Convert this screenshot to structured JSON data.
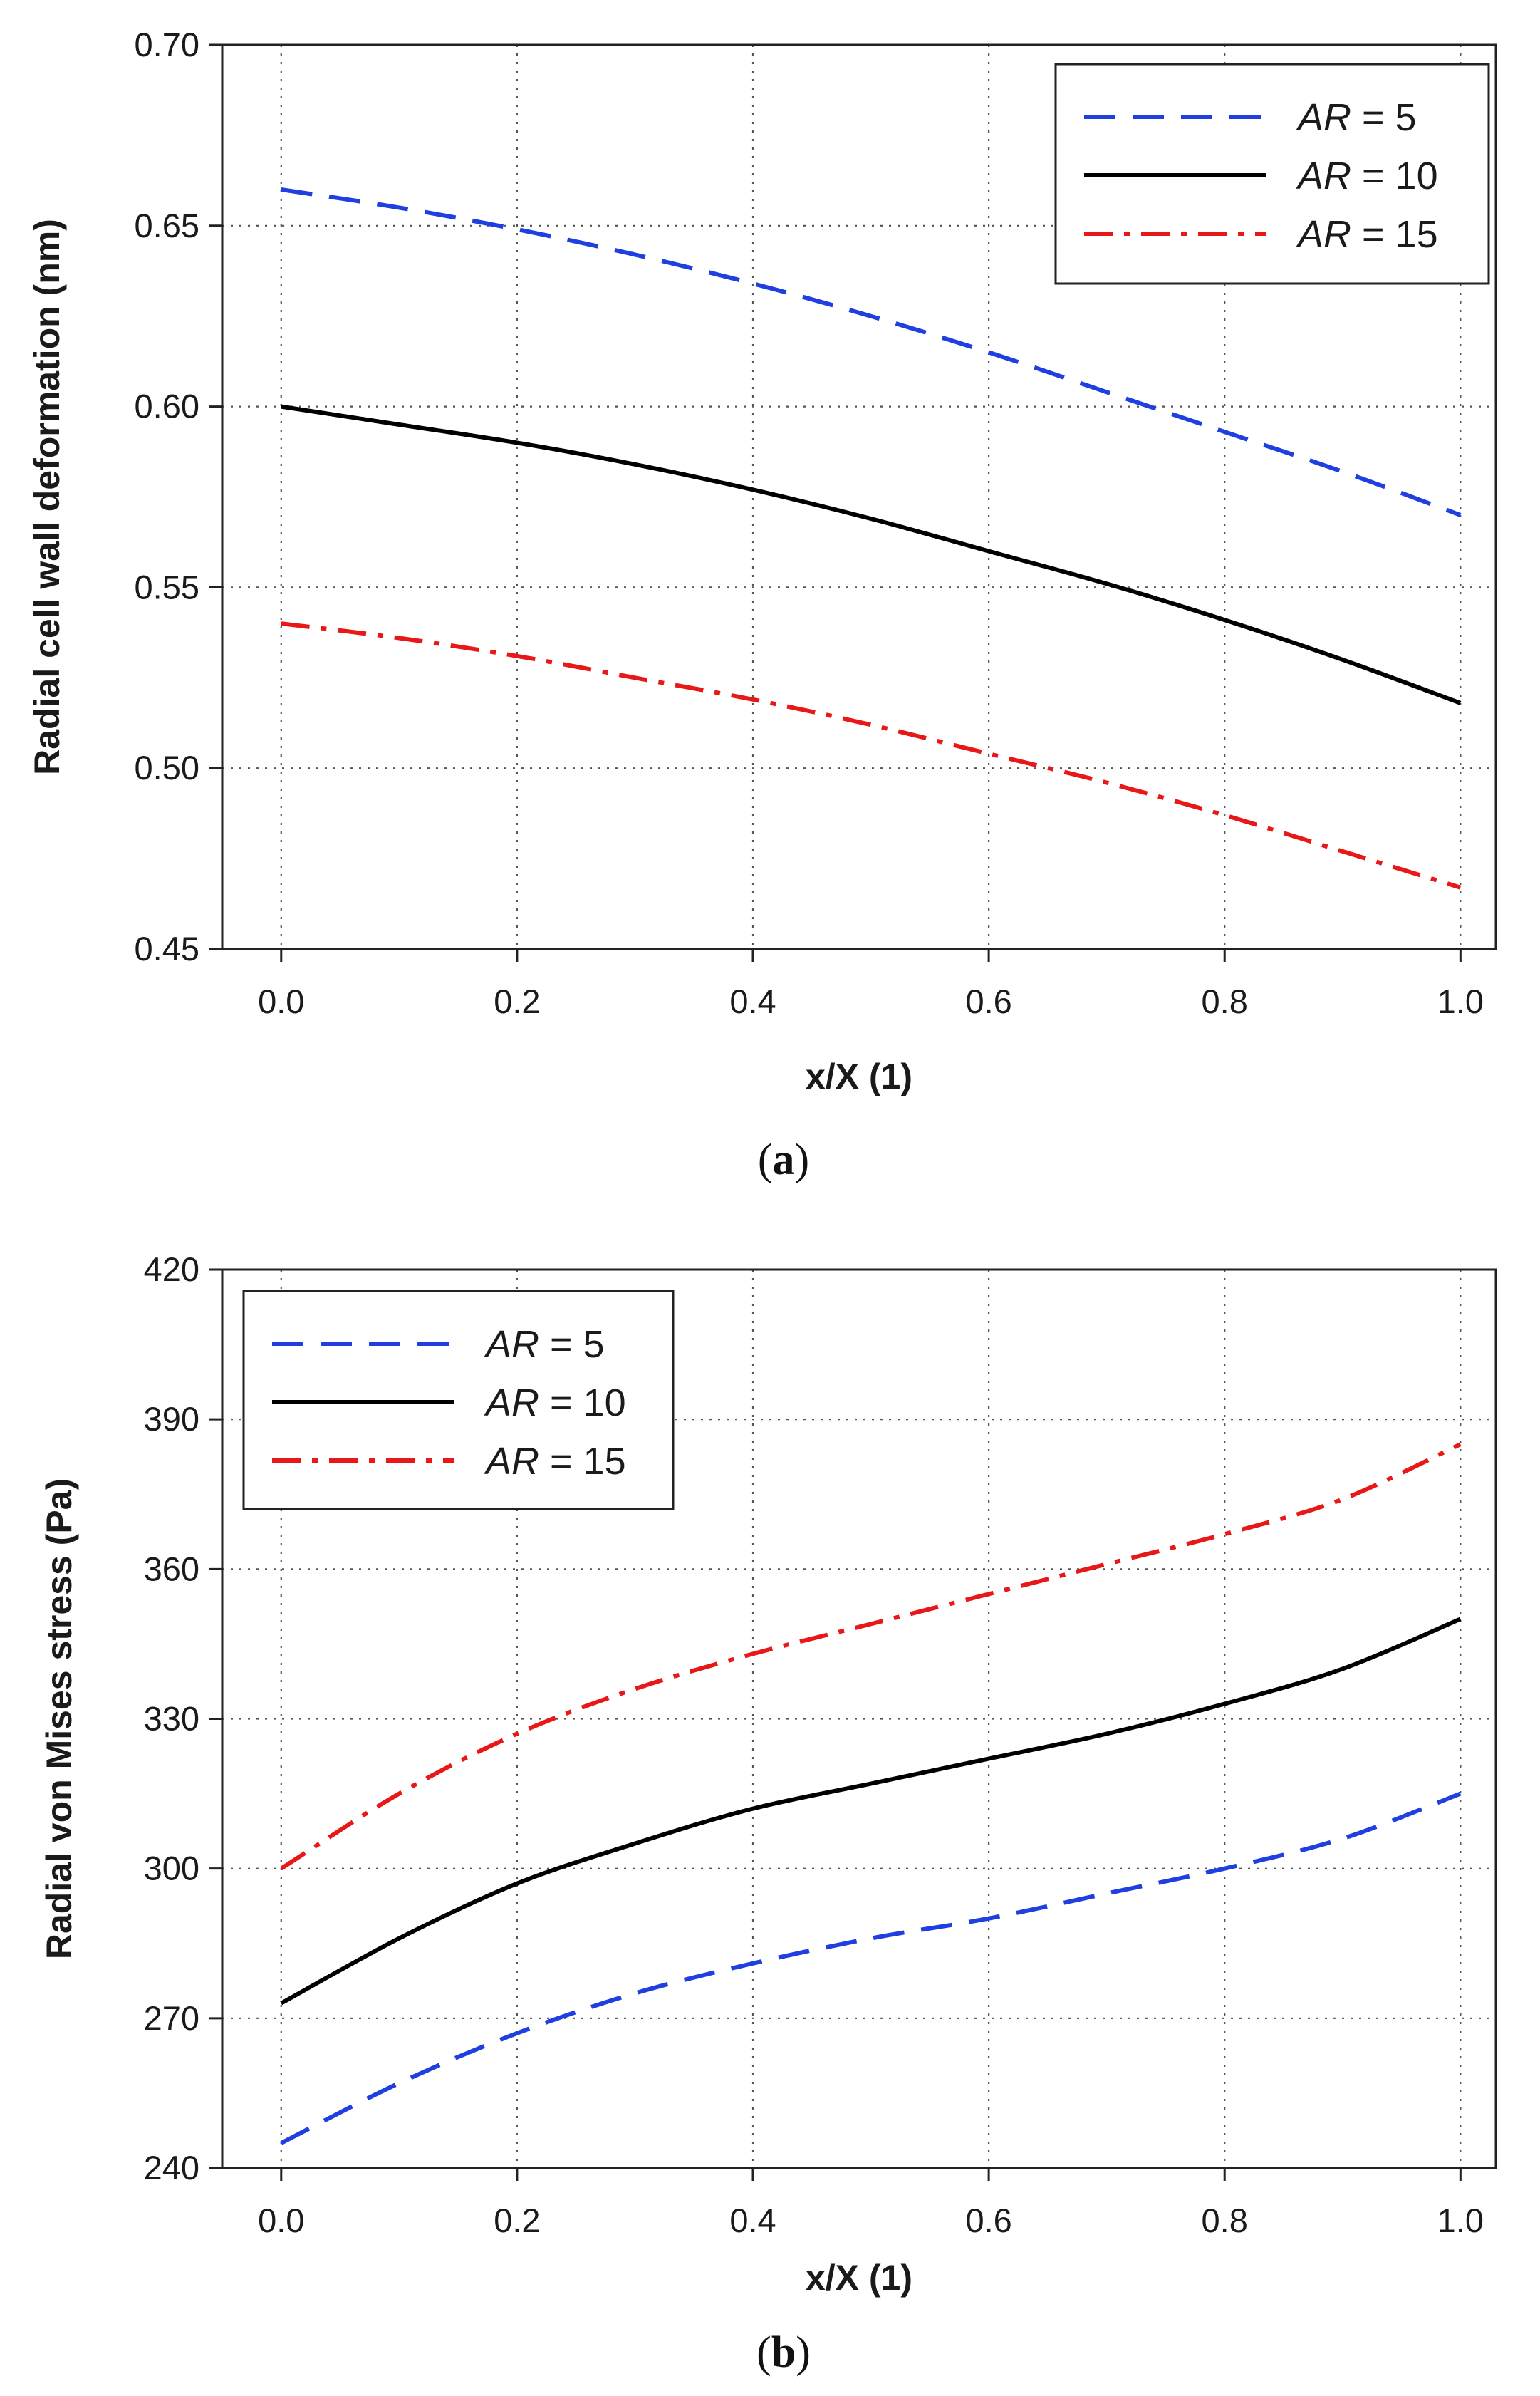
{
  "chart_data": [
    {
      "type": "line",
      "panel": "a",
      "caption_letter": "a",
      "xlabel": "x/X (1)",
      "ylabel": "Radial cell wall deformation (nm)",
      "xlim": [
        -0.05,
        1.03
      ],
      "ylim": [
        0.45,
        0.7
      ],
      "xticks": [
        "0.0",
        "0.2",
        "0.4",
        "0.6",
        "0.8",
        "1.0"
      ],
      "yticks": [
        "0.45",
        "0.50",
        "0.55",
        "0.60",
        "0.65",
        "0.70"
      ],
      "grid": true,
      "legend_position": "top-right",
      "x": [
        0.0,
        0.1,
        0.2,
        0.3,
        0.4,
        0.5,
        0.6,
        0.7,
        0.8,
        0.9,
        1.0
      ],
      "series": [
        {
          "name": "AR = 5",
          "prefix": "AR",
          "suffix": " = 5",
          "color": "#1f3fe0",
          "dash": "dashed",
          "values": [
            0.66,
            0.655,
            0.649,
            0.642,
            0.634,
            0.625,
            0.615,
            0.604,
            0.593,
            0.582,
            0.57
          ]
        },
        {
          "name": "AR = 10",
          "prefix": "AR",
          "suffix": " = 10",
          "color": "#000000",
          "dash": "solid",
          "values": [
            0.6,
            0.595,
            0.59,
            0.584,
            0.577,
            0.569,
            0.56,
            0.551,
            0.541,
            0.53,
            0.518
          ]
        },
        {
          "name": "AR = 15",
          "prefix": "AR",
          "suffix": " = 15",
          "color": "#e81818",
          "dash": "dashdot",
          "values": [
            0.54,
            0.536,
            0.531,
            0.525,
            0.519,
            0.512,
            0.504,
            0.496,
            0.487,
            0.477,
            0.467
          ]
        }
      ]
    },
    {
      "type": "line",
      "panel": "b",
      "caption_letter": "b",
      "xlabel": "x/X (1)",
      "ylabel": "Radial von Mises stress (Pa)",
      "xlim": [
        -0.05,
        1.03
      ],
      "ylim": [
        240,
        420
      ],
      "xticks": [
        "0.0",
        "0.2",
        "0.4",
        "0.6",
        "0.8",
        "1.0"
      ],
      "yticks": [
        "240",
        "270",
        "300",
        "330",
        "360",
        "390",
        "420"
      ],
      "grid": true,
      "legend_position": "top-left",
      "x": [
        0.0,
        0.1,
        0.2,
        0.3,
        0.4,
        0.5,
        0.6,
        0.7,
        0.8,
        0.9,
        1.0
      ],
      "series": [
        {
          "name": "AR = 5",
          "prefix": "AR",
          "suffix": " = 5",
          "color": "#1f3fe0",
          "dash": "dashed",
          "values": [
            245,
            257,
            267,
            275,
            281,
            286,
            290,
            295,
            300,
            306,
            315
          ]
        },
        {
          "name": "AR = 10",
          "prefix": "AR",
          "suffix": " = 10",
          "color": "#000000",
          "dash": "solid",
          "values": [
            273,
            286,
            297,
            305,
            312,
            317,
            322,
            327,
            333,
            340,
            350
          ]
        },
        {
          "name": "AR = 15",
          "prefix": "AR",
          "suffix": " = 15",
          "color": "#e81818",
          "dash": "dashdot",
          "values": [
            300,
            315,
            327,
            336,
            343,
            349,
            355,
            361,
            367,
            374,
            385
          ]
        }
      ]
    }
  ]
}
